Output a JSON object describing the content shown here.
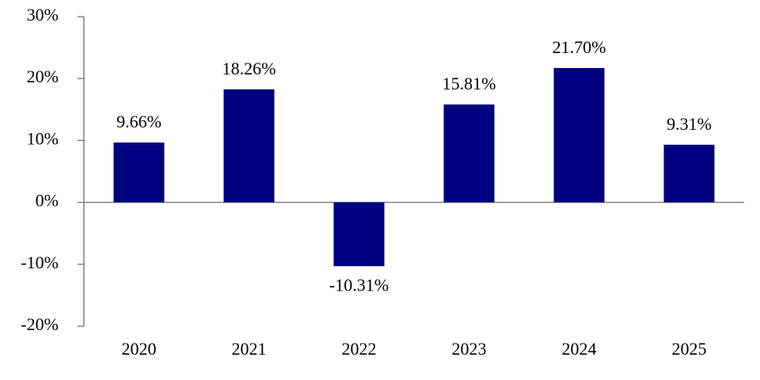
{
  "chart_data": {
    "type": "bar",
    "categories": [
      "2020",
      "2021",
      "2022",
      "2023",
      "2024",
      "2025"
    ],
    "values": [
      9.66,
      18.26,
      -10.31,
      15.81,
      21.7,
      9.31
    ],
    "value_labels": [
      "9.66%",
      "18.26%",
      "-10.31%",
      "15.81%",
      "21.70%",
      "9.31%"
    ],
    "y_ticks": [
      30,
      20,
      10,
      0,
      -10,
      -20
    ],
    "y_tick_labels": [
      "30%",
      "20%",
      "10%",
      "0%",
      "-10%",
      "-20%"
    ],
    "ylim": [
      -20,
      30
    ],
    "grid": false,
    "bar_color": "#000080",
    "axis_color": "#808080",
    "title": "",
    "xlabel": "",
    "ylabel": ""
  }
}
